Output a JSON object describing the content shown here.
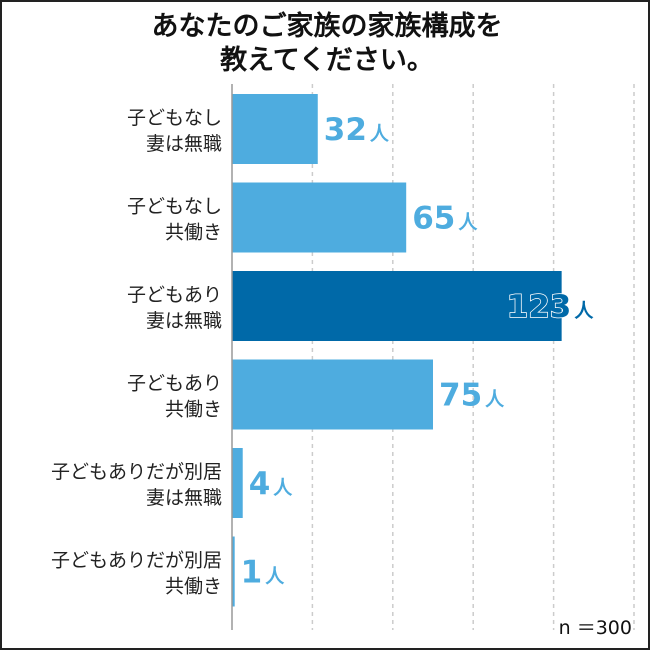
{
  "chart_data": {
    "type": "bar",
    "orientation": "horizontal",
    "title_lines": [
      "あなたのご家族の家族構成を",
      "教えてください。"
    ],
    "categories": [
      [
        "子どもなし",
        "妻は無職"
      ],
      [
        "子どもなし",
        "共働き"
      ],
      [
        "子どもあり",
        "妻は無職"
      ],
      [
        "子どもあり",
        "共働き"
      ],
      [
        "子どもありだが別居",
        "妻は無職"
      ],
      [
        "子どもありだが別居",
        "共働き"
      ]
    ],
    "values": [
      32,
      65,
      123,
      75,
      4,
      1
    ],
    "unit": "人",
    "xlim": [
      0,
      150
    ],
    "highlight_index": 2,
    "grid": true,
    "note": "n ＝300"
  },
  "colors": {
    "bar": "#4EACDF",
    "bar_highlight": "#0069A8",
    "label": "#4EACDF",
    "label_highlight": "#0069A8",
    "grid": "#cccccc",
    "axis": "#999999"
  }
}
